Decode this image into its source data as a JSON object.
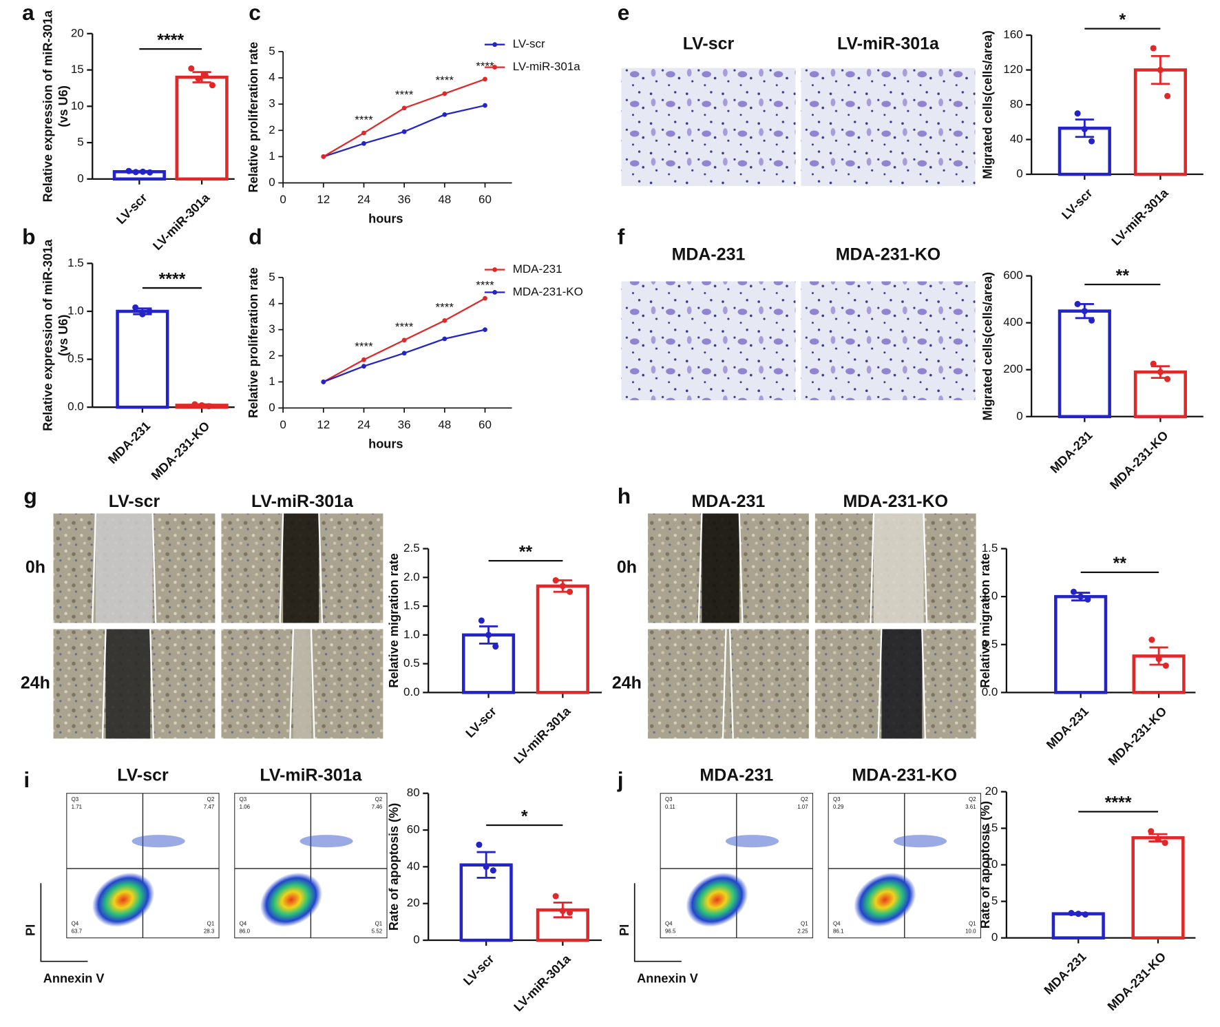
{
  "panels": [
    "a",
    "b",
    "c",
    "d",
    "e",
    "f",
    "g",
    "h",
    "i",
    "j"
  ],
  "chart_data": [
    {
      "type": "bar",
      "categories": [
        "LV-scr",
        "LV-miR-301a"
      ],
      "values": [
        1.0,
        14.0
      ],
      "errors": [
        0.1,
        0.7
      ],
      "points": [
        [
          1.1,
          0.95,
          1.0,
          0.9
        ],
        [
          15.2,
          13.8,
          14.3,
          12.9
        ]
      ],
      "colors": [
        "#2323c8",
        "#e02828"
      ],
      "ylim": [
        0,
        20
      ],
      "yticks": [
        0,
        5,
        10,
        15,
        20
      ],
      "y_label": [
        "Relative expression of miR-301a",
        "(vs U6)"
      ],
      "significance": "****"
    },
    {
      "type": "bar",
      "categories": [
        "MDA-231",
        "MDA-231-KO"
      ],
      "values": [
        1.0,
        0.02
      ],
      "errors": [
        0.03,
        0.01
      ],
      "points": [
        [
          1.04,
          0.97,
          1.0
        ],
        [
          0.03,
          0.02,
          0.01
        ]
      ],
      "colors": [
        "#2323c8",
        "#e02828"
      ],
      "ylim": [
        0,
        1.5
      ],
      "yticks": [
        {
          "value": 0,
          "label": "0.0"
        },
        {
          "value": 0.5,
          "label": "0.5"
        },
        {
          "value": 1,
          "label": "1.0"
        },
        {
          "value": 1.5,
          "label": "1.5"
        }
      ],
      "y_label": [
        "Relative expression of miR-301a",
        "(vs U6)"
      ],
      "significance": "****"
    },
    {
      "type": "line",
      "x": [
        12,
        24,
        36,
        48,
        60
      ],
      "xlim": [
        0,
        68
      ],
      "xticks": [
        0,
        12,
        24,
        36,
        48,
        60
      ],
      "ylim": [
        0,
        5
      ],
      "yticks": [
        0,
        1,
        2,
        3,
        4,
        5
      ],
      "x_label": "hours",
      "y_label": "Relative proliferation rate",
      "series": [
        {
          "name": "LV-scr",
          "color": "#2323c8",
          "values": [
            1.0,
            1.5,
            1.95,
            2.6,
            2.95
          ]
        },
        {
          "name": "LV-miR-301a",
          "color": "#e02828",
          "values": [
            1.0,
            1.9,
            2.85,
            3.4,
            3.95
          ]
        }
      ],
      "annotations": [
        {
          "x": 24,
          "text": "****"
        },
        {
          "x": 36,
          "text": "****"
        },
        {
          "x": 48,
          "text": "****"
        },
        {
          "x": 60,
          "text": "****"
        }
      ]
    },
    {
      "type": "line",
      "x": [
        12,
        24,
        36,
        48,
        60
      ],
      "xlim": [
        0,
        68
      ],
      "xticks": [
        0,
        12,
        24,
        36,
        48,
        60
      ],
      "ylim": [
        0,
        5
      ],
      "yticks": [
        0,
        1,
        2,
        3,
        4,
        5
      ],
      "x_label": "hours",
      "y_label": "Relative proliferation rate",
      "series": [
        {
          "name": "MDA-231",
          "color": "#e02828",
          "values": [
            1.0,
            1.85,
            2.6,
            3.35,
            4.2
          ]
        },
        {
          "name": "MDA-231-KO",
          "color": "#2323c8",
          "values": [
            1.0,
            1.6,
            2.1,
            2.65,
            3.0
          ]
        }
      ],
      "annotations": [
        {
          "x": 24,
          "text": "****"
        },
        {
          "x": 36,
          "text": "****"
        },
        {
          "x": 48,
          "text": "****"
        },
        {
          "x": 60,
          "text": "****"
        }
      ]
    },
    {
      "type": "bar",
      "categories": [
        "LV-scr",
        "LV-miR-301a"
      ],
      "values": [
        53,
        120
      ],
      "errors": [
        10,
        16
      ],
      "points": [
        [
          70,
          52,
          38
        ],
        [
          145,
          120,
          90
        ]
      ],
      "colors": [
        "#2323c8",
        "#e02828"
      ],
      "ylim": [
        0,
        160
      ],
      "yticks": [
        0,
        40,
        80,
        120,
        160
      ],
      "y_label": "Migrated cells(cells/area)",
      "significance": "*"
    },
    {
      "type": "bar",
      "categories": [
        "MDA-231",
        "MDA-231-KO"
      ],
      "values": [
        450,
        190
      ],
      "errors": [
        30,
        25
      ],
      "points": [
        [
          480,
          450,
          410
        ],
        [
          225,
          190,
          160
        ]
      ],
      "colors": [
        "#2323c8",
        "#e02828"
      ],
      "ylim": [
        0,
        600
      ],
      "yticks": [
        0,
        200,
        400,
        600
      ],
      "y_label": "Migrated cells(cells/area)",
      "significance": "**"
    },
    {
      "type": "bar",
      "categories": [
        "LV-scr",
        "LV-miR-301a"
      ],
      "values": [
        1.0,
        1.85
      ],
      "errors": [
        0.15,
        0.1
      ],
      "points": [
        [
          1.25,
          1.0,
          0.8
        ],
        [
          1.95,
          1.85,
          1.75
        ]
      ],
      "colors": [
        "#2323c8",
        "#e02828"
      ],
      "ylim": [
        0,
        2.5
      ],
      "yticks": [
        {
          "value": 0,
          "label": "0.0"
        },
        {
          "value": 0.5,
          "label": "0.5"
        },
        {
          "value": 1,
          "label": "1.0"
        },
        {
          "value": 1.5,
          "label": "1.5"
        },
        {
          "value": 2,
          "label": "2.0"
        },
        {
          "value": 2.5,
          "label": "2.5"
        }
      ],
      "y_label": "Relative migration rate",
      "significance": "**"
    },
    {
      "type": "bar",
      "categories": [
        "MDA-231",
        "MDA-231-KO"
      ],
      "values": [
        1.0,
        0.38
      ],
      "errors": [
        0.04,
        0.09
      ],
      "points": [
        [
          1.05,
          1.0,
          0.97
        ],
        [
          0.55,
          0.35,
          0.28
        ]
      ],
      "colors": [
        "#2323c8",
        "#e02828"
      ],
      "ylim": [
        0,
        1.5
      ],
      "yticks": [
        {
          "value": 0,
          "label": "0.0"
        },
        {
          "value": 0.5,
          "label": "0.5"
        },
        {
          "value": 1,
          "label": "1.0"
        },
        {
          "value": 1.5,
          "label": "1.5"
        }
      ],
      "y_label": "Relative migration rate",
      "significance": "**"
    },
    {
      "type": "bar",
      "categories": [
        "LV-scr",
        "LV-miR-301a"
      ],
      "values": [
        41,
        16.5
      ],
      "errors": [
        7,
        4
      ],
      "points": [
        [
          52,
          40,
          38
        ],
        [
          24,
          16,
          15
        ]
      ],
      "colors": [
        "#2323c8",
        "#e02828"
      ],
      "ylim": [
        0,
        80
      ],
      "yticks": [
        0,
        20,
        40,
        60,
        80
      ],
      "y_label": "Rate of apoptosis (%)",
      "significance": "*"
    },
    {
      "type": "bar",
      "categories": [
        "MDA-231",
        "MDA-231-KO"
      ],
      "values": [
        3.3,
        13.7
      ],
      "errors": [
        0.1,
        0.5
      ],
      "points": [
        [
          3.4,
          3.3,
          3.2
        ],
        [
          14.6,
          13.5,
          13.0
        ]
      ],
      "colors": [
        "#2323c8",
        "#e02828"
      ],
      "ylim": [
        0,
        20
      ],
      "yticks": [
        0,
        5,
        10,
        15,
        20
      ],
      "y_label": "Rate of apoptosis (%)",
      "significance": "****"
    }
  ],
  "images": {
    "e": {
      "titles": [
        "LV-scr",
        "LV-miR-301a"
      ]
    },
    "f": {
      "titles": [
        "MDA-231",
        "MDA-231-KO"
      ]
    },
    "g": {
      "titles": [
        "LV-scr",
        "LV-miR-301a"
      ],
      "rows": [
        "0h",
        "24h"
      ]
    },
    "h": {
      "titles": [
        "MDA-231",
        "MDA-231-KO"
      ],
      "rows": [
        "0h",
        "24h"
      ]
    },
    "i": {
      "titles": [
        "LV-scr",
        "LV-miR-301a"
      ],
      "y_label": "PI",
      "x_label": "Annexin V",
      "plots": [
        [
          {
            "name": "Q3",
            "value": "1.71"
          },
          {
            "name": "Q2",
            "value": "7.47"
          },
          {
            "name": "Q4",
            "value": "63.7"
          },
          {
            "name": "Q1",
            "value": "28.3"
          }
        ],
        [
          {
            "name": "Q3",
            "value": "1.06"
          },
          {
            "name": "Q2",
            "value": "7.46"
          },
          {
            "name": "Q4",
            "value": "86.0"
          },
          {
            "name": "Q1",
            "value": "5.52"
          }
        ]
      ]
    },
    "j": {
      "titles": [
        "MDA-231",
        "MDA-231-KO"
      ],
      "y_label": "PI",
      "x_label": "Annexin V",
      "plots": [
        [
          {
            "name": "Q3",
            "value": "0.11"
          },
          {
            "name": "Q2",
            "value": "1.07"
          },
          {
            "name": "Q4",
            "value": "96.5"
          },
          {
            "name": "Q1",
            "value": "2.25"
          }
        ],
        [
          {
            "name": "Q3",
            "value": "0.29"
          },
          {
            "name": "Q2",
            "value": "3.61"
          },
          {
            "name": "Q4",
            "value": "86.1"
          },
          {
            "name": "Q1",
            "value": "10.0"
          }
        ]
      ]
    }
  }
}
